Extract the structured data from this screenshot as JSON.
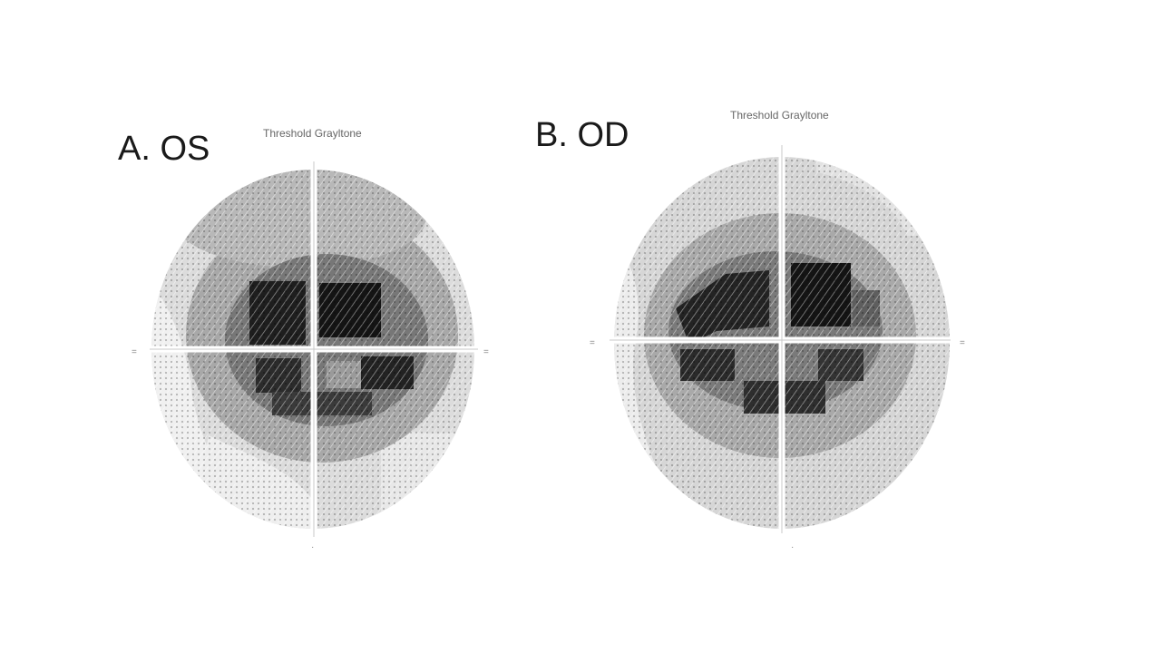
{
  "figure": {
    "background": "#ffffff",
    "panels": [
      {
        "id": "left",
        "label": "A. OS",
        "subtitle": "Threshold Grayltone",
        "scotoma_color": "#1b1b1b"
      },
      {
        "id": "right",
        "label": "B. OD",
        "subtitle": "Threshold Grayltone",
        "scotoma_color": "#1b1b1b"
      }
    ],
    "grayscale_levels": [
      "#eeeeee",
      "#d4d4d4",
      "#b4b4b4",
      "#8a8a8a",
      "#5a5a5a",
      "#1b1b1b"
    ]
  }
}
